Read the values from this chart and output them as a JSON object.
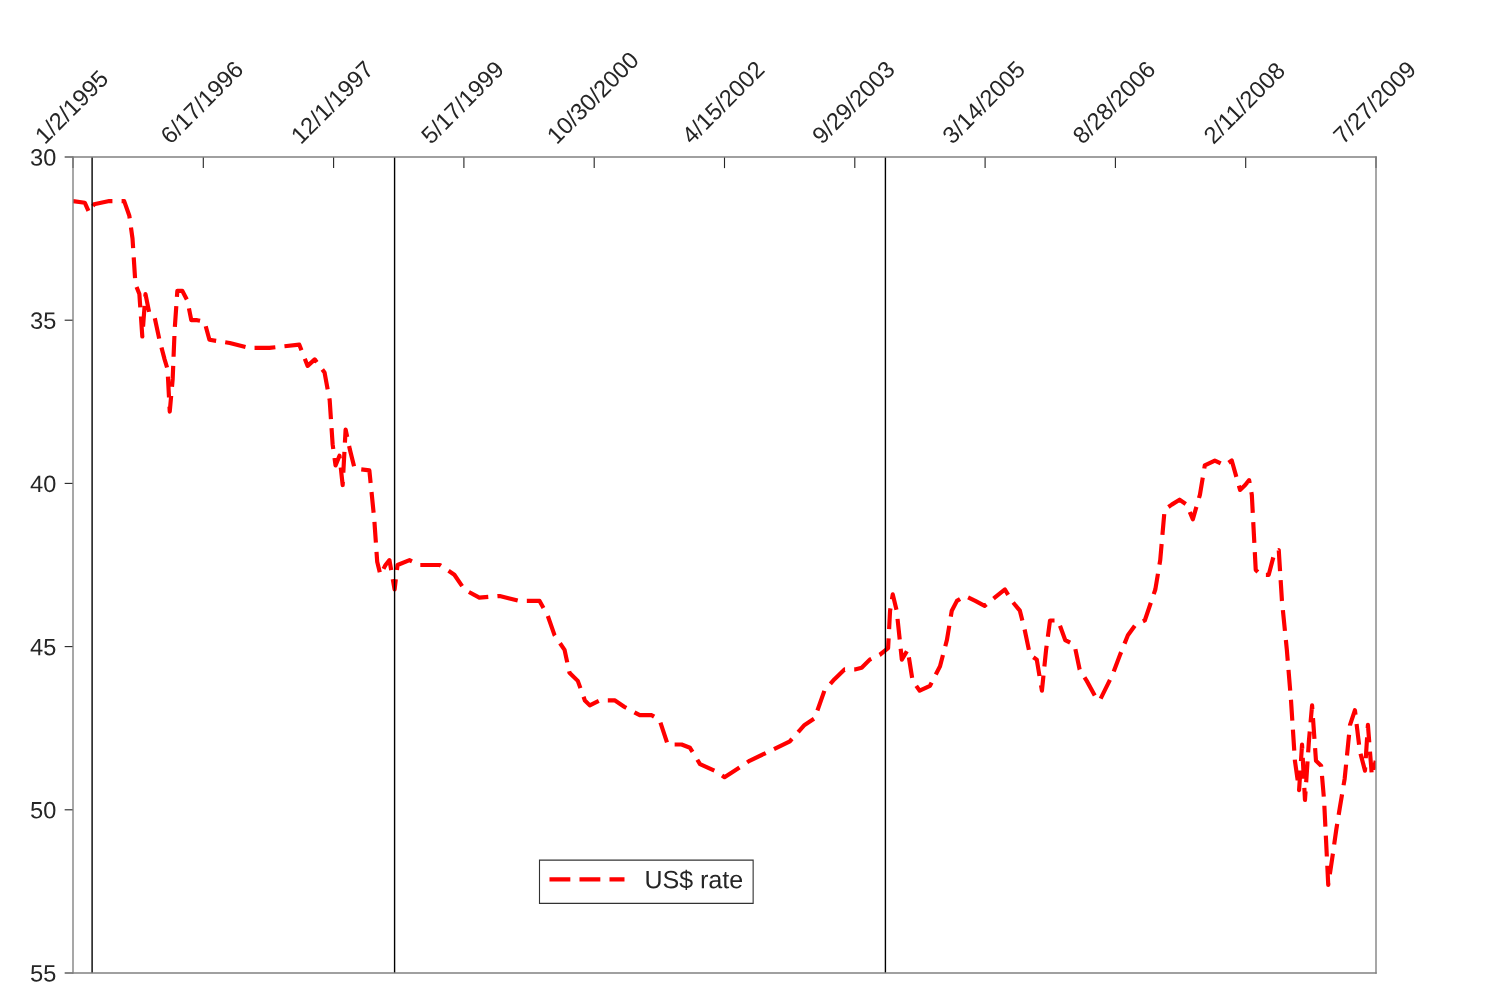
{
  "chart_data": {
    "type": "line",
    "legend": "bottom",
    "grid": false,
    "line_style": "dashed",
    "marker": "none",
    "xlim": [
      "1995-01-02",
      "2009-07-27"
    ],
    "xticks": [
      {
        "value": "1995-01-02",
        "label": "1/2/1995"
      },
      {
        "value": "1996-06-17",
        "label": "6/17/1996"
      },
      {
        "value": "1997-12-01",
        "label": "12/1/1997"
      },
      {
        "value": "1999-05-17",
        "label": "5/17/1999"
      },
      {
        "value": "2000-10-30",
        "label": "10/30/2000"
      },
      {
        "value": "2002-04-15",
        "label": "4/15/2002"
      },
      {
        "value": "2003-09-29",
        "label": "9/29/2003"
      },
      {
        "value": "2005-03-14",
        "label": "3/14/2005"
      },
      {
        "value": "2006-08-28",
        "label": "8/28/2006"
      },
      {
        "value": "2008-02-11",
        "label": "2/11/2008"
      },
      {
        "value": "2009-07-27",
        "label": "7/27/2009"
      }
    ],
    "ylim": [
      55,
      30
    ],
    "yticks": [
      30,
      35,
      40,
      45,
      50,
      55
    ],
    "ref_lines": [
      {
        "axis": "x",
        "value": "1995-03-21",
        "color": "#000000"
      },
      {
        "axis": "x",
        "value": "1998-08-07",
        "color": "#000000"
      },
      {
        "axis": "x",
        "value": "2004-02-01",
        "color": "#000000"
      }
    ],
    "series": [
      {
        "name": "US$ rate",
        "color": "#ff0000",
        "x": [
          "1995-01-02",
          "1995-02-19",
          "1995-03-09",
          "1995-03-29",
          "1995-05-30",
          "1995-07-30",
          "1995-08-20",
          "1995-09-02",
          "1995-09-14",
          "1995-09-30",
          "1995-10-12",
          "1995-10-25",
          "1995-11-10",
          "1995-12-01",
          "1995-12-21",
          "1996-01-11",
          "1996-01-23",
          "1996-02-01",
          "1996-02-13",
          "1996-02-21",
          "1996-03-03",
          "1996-03-23",
          "1996-04-13",
          "1996-04-29",
          "1996-05-23",
          "1996-06-22",
          "1996-07-12",
          "1996-10-03",
          "1996-12-23",
          "1997-03-14",
          "1997-07-14",
          "1997-08-17",
          "1997-09-15",
          "1997-10-25",
          "1997-11-15",
          "1997-11-27",
          "1997-12-09",
          "1997-12-25",
          "1998-01-07",
          "1998-01-19",
          "1998-02-05",
          "1998-02-25",
          "1998-04-26",
          "1998-05-16",
          "1998-05-28",
          "1998-06-10",
          "1998-07-01",
          "1998-07-17",
          "1998-08-07",
          "1998-08-19",
          "1998-10-07",
          "1998-11-18",
          "1999-02-08",
          "1999-04-08",
          "1999-05-19",
          "1999-07-19",
          "1999-10-10",
          "1999-12-30",
          "2000-03-21",
          "2000-04-23",
          "2000-05-21",
          "2000-07-01",
          "2000-07-21",
          "2000-08-24",
          "2000-09-22",
          "2000-10-12",
          "2000-11-22",
          "2001-01-23",
          "2001-03-03",
          "2001-05-04",
          "2001-06-22",
          "2001-07-24",
          "2001-08-26",
          "2001-10-22",
          "2001-11-25",
          "2002-01-05",
          "2002-03-05",
          "2002-04-15",
          "2002-05-26",
          "2002-07-26",
          "2002-10-17",
          "2003-01-07",
          "2003-03-08",
          "2003-04-18",
          "2003-05-28",
          "2003-07-08",
          "2003-08-18",
          "2003-09-29",
          "2003-10-27",
          "2003-11-29",
          "2004-01-09",
          "2004-02-12",
          "2004-02-20",
          "2004-03-02",
          "2004-03-18",
          "2004-04-08",
          "2004-05-02",
          "2004-05-22",
          "2004-06-20",
          "2004-08-01",
          "2004-09-11",
          "2004-10-09",
          "2004-10-29",
          "2004-11-19",
          "2004-12-22",
          "2005-02-02",
          "2005-03-12",
          "2005-04-22",
          "2005-06-03",
          "2005-07-01",
          "2005-08-03",
          "2005-08-23",
          "2005-09-13",
          "2005-10-11",
          "2005-11-01",
          "2005-11-18",
          "2005-12-04",
          "2006-01-06",
          "2006-02-04",
          "2006-03-14",
          "2006-04-04",
          "2006-05-03",
          "2006-06-05",
          "2006-06-25",
          "2006-07-15",
          "2006-08-17",
          "2006-09-16",
          "2006-10-18",
          "2006-11-16",
          "2006-12-26",
          "2007-02-07",
          "2007-02-27",
          "2007-03-17",
          "2007-04-15",
          "2007-05-17",
          "2007-06-15",
          "2007-07-10",
          "2007-08-08",
          "2007-08-28",
          "2007-10-08",
          "2007-11-18",
          "2007-12-16",
          "2008-01-19",
          "2008-02-09",
          "2008-02-25",
          "2008-03-07",
          "2008-03-23",
          "2008-04-13",
          "2008-05-15",
          "2008-06-05",
          "2008-06-25",
          "2008-07-08",
          "2008-07-28",
          "2008-08-14",
          "2008-08-30",
          "2008-09-16",
          "2008-09-28",
          "2008-10-10",
          "2008-10-26",
          "2008-11-08",
          "2008-11-24",
          "2008-12-15",
          "2008-12-27",
          "2009-01-13",
          "2009-01-29",
          "2009-02-15",
          "2009-03-01",
          "2009-03-21",
          "2009-04-12",
          "2009-05-02",
          "2009-05-22",
          "2009-06-12",
          "2009-06-24",
          "2009-07-10",
          "2009-07-26"
        ],
        "values": [
          31.35,
          31.4,
          31.7,
          31.45,
          31.35,
          31.35,
          31.8,
          32.5,
          33.9,
          34.2,
          35.5,
          34.2,
          34.8,
          34.9,
          35.6,
          36.2,
          36.5,
          37.8,
          36.8,
          35.3,
          34.1,
          34.1,
          34.4,
          35.0,
          35.0,
          35.05,
          35.6,
          35.7,
          35.85,
          35.85,
          35.75,
          36.4,
          36.2,
          36.6,
          37.45,
          38.8,
          39.45,
          39.15,
          40.05,
          38.35,
          38.95,
          39.55,
          39.6,
          41.1,
          42.4,
          42.8,
          42.5,
          42.35,
          43.25,
          42.5,
          42.35,
          42.5,
          42.5,
          42.8,
          43.25,
          43.5,
          43.45,
          43.6,
          43.6,
          44.05,
          44.65,
          45.1,
          45.8,
          46.05,
          46.65,
          46.8,
          46.65,
          46.65,
          46.85,
          47.1,
          47.1,
          47.25,
          48.0,
          48.0,
          48.1,
          48.6,
          48.8,
          49.0,
          48.8,
          48.5,
          48.2,
          47.9,
          47.4,
          47.2,
          46.35,
          46.0,
          45.7,
          45.7,
          45.65,
          45.4,
          45.25,
          45.05,
          43.9,
          43.4,
          43.9,
          45.4,
          45.1,
          46.05,
          46.35,
          46.2,
          45.6,
          44.8,
          43.9,
          43.6,
          43.45,
          43.6,
          43.75,
          43.5,
          43.25,
          43.6,
          43.9,
          44.5,
          45.25,
          45.4,
          46.35,
          45.1,
          44.2,
          44.2,
          44.8,
          44.95,
          45.7,
          46.05,
          46.5,
          46.65,
          46.35,
          45.85,
          45.25,
          44.65,
          44.35,
          44.2,
          43.25,
          42.35,
          40.8,
          40.65,
          40.5,
          40.65,
          41.1,
          40.35,
          39.45,
          39.3,
          39.45,
          39.3,
          40.2,
          40.05,
          39.9,
          40.35,
          42.65,
          42.8,
          42.8,
          42.2,
          42.05,
          43.6,
          45.1,
          46.65,
          48.5,
          49.4,
          48.0,
          49.7,
          47.9,
          46.8,
          48.5,
          48.65,
          49.7,
          52.3,
          51.5,
          50.6,
          49.95,
          49.05,
          47.4,
          46.95,
          48.2,
          48.8,
          47.4,
          48.95,
          48.5
        ]
      }
    ]
  }
}
